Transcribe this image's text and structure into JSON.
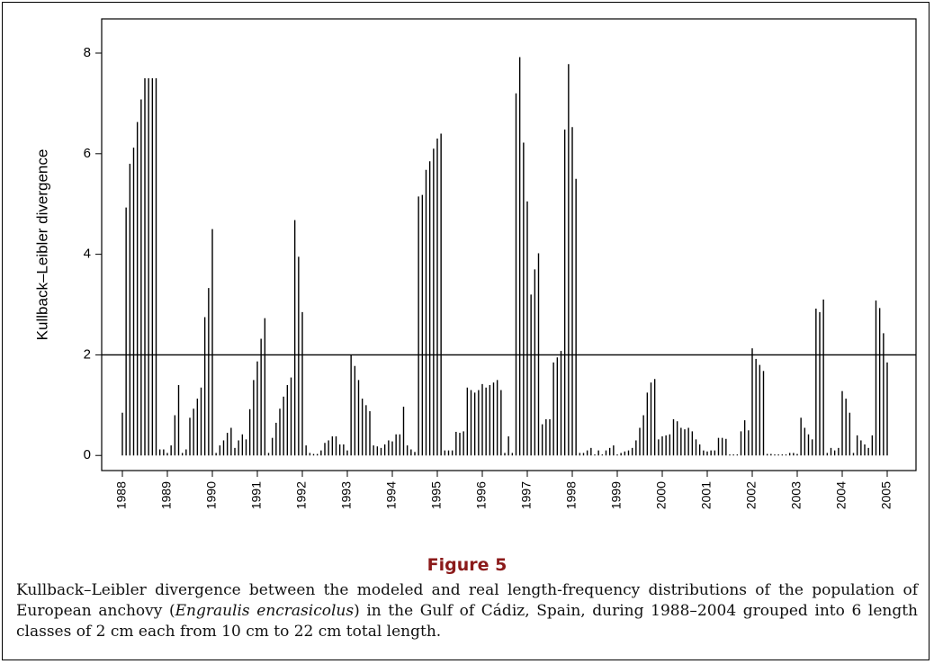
{
  "chart_data": {
    "type": "spike",
    "y_label": "Kullback–Leibler divergence",
    "figure_label": "Figure 5",
    "caption": [
      "Kullback–Leibler divergence between the modeled and real length-frequency distributions of the population of European anchovy (",
      "Engraulis encrasicolus",
      ") in the Gulf of Cádiz, Spain, during 1988–2004 grouped into 6 length classes of 2 cm each from 10 cm to 22 cm total length."
    ],
    "color": "#000000",
    "reference_line": 2,
    "xlim": [
      1987.54,
      2005.64
    ],
    "ylim": [
      -0.3,
      8.68
    ],
    "xticks": [
      1988,
      1989,
      1990,
      1991,
      1992,
      1993,
      1994,
      1995,
      1996,
      1997,
      1998,
      1999,
      2000,
      2001,
      2002,
      2003,
      2004,
      2005
    ],
    "yticks": [
      0,
      2,
      4,
      6,
      8
    ],
    "x": [
      1988,
      1988.083,
      1988.167,
      1988.25,
      1988.333,
      1988.417,
      1988.5,
      1988.583,
      1988.667,
      1988.75,
      1988.833,
      1988.917,
      1989,
      1989.083,
      1989.167,
      1989.25,
      1989.333,
      1989.417,
      1989.5,
      1989.583,
      1989.667,
      1989.75,
      1989.833,
      1989.917,
      1990,
      1990.083,
      1990.167,
      1990.25,
      1990.333,
      1990.417,
      1990.5,
      1990.583,
      1990.667,
      1990.75,
      1990.833,
      1990.917,
      1991,
      1991.083,
      1991.167,
      1991.25,
      1991.333,
      1991.417,
      1991.5,
      1991.583,
      1991.667,
      1991.75,
      1991.833,
      1991.917,
      1992,
      1992.083,
      1992.167,
      1992.25,
      1992.333,
      1992.417,
      1992.5,
      1992.583,
      1992.667,
      1992.75,
      1992.833,
      1992.917,
      1993,
      1993.083,
      1993.167,
      1993.25,
      1993.333,
      1993.417,
      1993.5,
      1993.583,
      1993.667,
      1993.75,
      1993.833,
      1993.917,
      1994,
      1994.083,
      1994.167,
      1994.25,
      1994.333,
      1994.417,
      1994.5,
      1994.583,
      1994.667,
      1994.75,
      1994.833,
      1994.917,
      1995,
      1995.083,
      1995.167,
      1995.25,
      1995.333,
      1995.417,
      1995.5,
      1995.583,
      1995.667,
      1995.75,
      1995.833,
      1995.917,
      1996,
      1996.083,
      1996.167,
      1996.25,
      1996.333,
      1996.417,
      1996.5,
      1996.583,
      1996.667,
      1996.75,
      1996.833,
      1996.917,
      1997,
      1997.083,
      1997.167,
      1997.25,
      1997.333,
      1997.417,
      1997.5,
      1997.583,
      1997.667,
      1997.75,
      1997.833,
      1997.917,
      1998,
      1998.083,
      1998.167,
      1998.25,
      1998.333,
      1998.417,
      1998.5,
      1998.583,
      1998.667,
      1998.75,
      1998.833,
      1998.917,
      1999,
      1999.083,
      1999.167,
      1999.25,
      1999.333,
      1999.417,
      1999.5,
      1999.583,
      1999.667,
      1999.75,
      1999.833,
      1999.917,
      2000,
      2000.083,
      2000.167,
      2000.25,
      2000.333,
      2000.417,
      2000.5,
      2000.583,
      2000.667,
      2000.75,
      2000.833,
      2000.917,
      2001,
      2001.083,
      2001.167,
      2001.25,
      2001.333,
      2001.417,
      2001.5,
      2001.583,
      2001.667,
      2001.75,
      2001.833,
      2001.917,
      2002,
      2002.083,
      2002.167,
      2002.25,
      2002.333,
      2002.417,
      2002.5,
      2002.583,
      2002.667,
      2002.75,
      2002.833,
      2002.917,
      2003,
      2003.083,
      2003.167,
      2003.25,
      2003.333,
      2003.417,
      2003.5,
      2003.583,
      2003.667,
      2003.75,
      2003.833,
      2003.917,
      2004,
      2004.083,
      2004.167,
      2004.25,
      2004.333,
      2004.417,
      2004.5,
      2004.583,
      2004.667,
      2004.75,
      2004.833,
      2004.917,
      2005
    ],
    "values": [
      0.85,
      4.93,
      5.8,
      6.12,
      6.63,
      7.08,
      7.5,
      7.5,
      7.5,
      7.5,
      0.12,
      0.12,
      0.05,
      0.2,
      0.8,
      1.4,
      0.05,
      0.12,
      0.75,
      0.93,
      1.13,
      1.35,
      2.75,
      3.33,
      4.5,
      0.05,
      0.2,
      0.3,
      0.45,
      0.55,
      0.15,
      0.3,
      0.42,
      0.32,
      0.92,
      1.5,
      1.87,
      2.32,
      2.73,
      0.05,
      0.35,
      0.65,
      0.93,
      1.17,
      1.4,
      1.55,
      4.68,
      3.95,
      2.85,
      0.2,
      0.05,
      0.03,
      0.03,
      0.1,
      0.25,
      0.3,
      0.38,
      0.38,
      0.22,
      0.22,
      0.1,
      2.0,
      1.78,
      1.5,
      1.13,
      1.0,
      0.88,
      0.2,
      0.18,
      0.15,
      0.22,
      0.3,
      0.28,
      0.42,
      0.42,
      0.97,
      0.2,
      0.12,
      0.07,
      5.15,
      5.18,
      5.68,
      5.85,
      6.1,
      6.3,
      6.4,
      0.1,
      0.1,
      0.1,
      0.47,
      0.45,
      0.48,
      1.35,
      1.3,
      1.25,
      1.3,
      1.42,
      1.35,
      1.4,
      1.45,
      1.5,
      1.3,
      0.05,
      0.38,
      0.05,
      7.2,
      7.92,
      6.22,
      5.05,
      3.2,
      3.7,
      4.02,
      0.62,
      0.72,
      0.72,
      1.85,
      1.95,
      2.08,
      6.48,
      7.78,
      6.53,
      5.5,
      0.05,
      0.05,
      0.1,
      0.15,
      0.02,
      0.1,
      0.02,
      0.1,
      0.15,
      0.2,
      0.02,
      0.05,
      0.08,
      0.1,
      0.15,
      0.3,
      0.55,
      0.8,
      1.25,
      1.45,
      1.52,
      0.32,
      0.38,
      0.4,
      0.42,
      0.72,
      0.68,
      0.55,
      0.52,
      0.55,
      0.48,
      0.32,
      0.22,
      0.1,
      0.08,
      0.1,
      0.1,
      0.35,
      0.35,
      0.33,
      0.02,
      0.02,
      0.02,
      0.48,
      0.7,
      0.5,
      2.13,
      1.92,
      1.8,
      1.68,
      0.03,
      0.03,
      0.02,
      0.02,
      0.02,
      0.02,
      0.05,
      0.05,
      0.03,
      0.75,
      0.55,
      0.42,
      0.32,
      2.92,
      2.85,
      3.1,
      0.05,
      0.15,
      0.1,
      0.15,
      1.28,
      1.13,
      0.85,
      0.05,
      0.4,
      0.3,
      0.22,
      0.15,
      0.4,
      3.08,
      2.93,
      2.43,
      1.85
    ]
  }
}
